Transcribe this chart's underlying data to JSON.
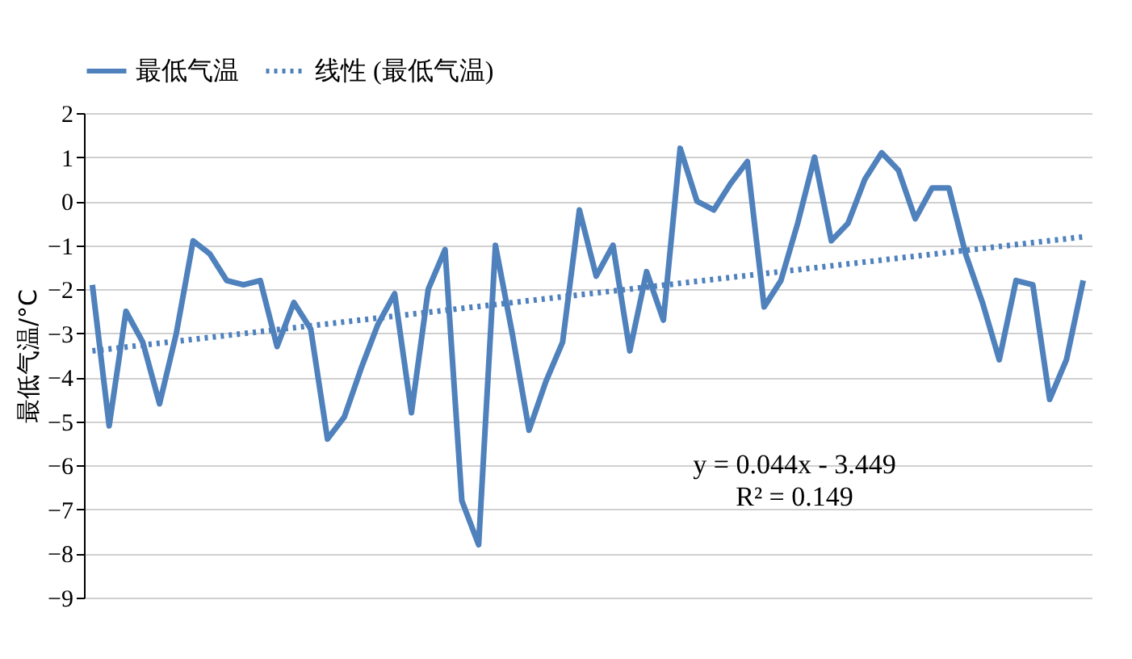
{
  "chart_data": {
    "type": "line",
    "ylabel": "最低气温/°C",
    "categories": [
      null,
      null,
      null,
      null,
      null,
      null,
      null,
      null,
      null,
      null,
      null,
      null,
      null,
      null,
      null,
      null,
      null,
      null,
      null,
      null,
      null,
      null,
      null,
      null,
      null,
      null,
      null,
      null,
      null,
      null,
      null,
      null,
      null,
      null,
      null,
      null,
      null,
      null,
      null,
      null,
      null,
      null,
      null,
      null,
      null,
      null,
      null,
      null,
      null,
      null,
      null,
      null,
      null,
      null,
      null,
      null,
      null,
      null,
      null,
      null
    ],
    "series": [
      {
        "name": "最低气温",
        "color": "#4f81bd",
        "line_style": "solid",
        "values": [
          -1.9,
          -5.1,
          -2.5,
          -3.2,
          -4.6,
          -3.0,
          -0.9,
          -1.2,
          -1.8,
          -1.9,
          -1.8,
          -3.3,
          -2.3,
          -2.9,
          -5.4,
          -4.9,
          -3.8,
          -2.8,
          -2.1,
          -4.8,
          -2.0,
          -1.1,
          -6.8,
          -7.8,
          -1.0,
          -3.0,
          -5.2,
          -4.1,
          -3.2,
          -0.2,
          -1.7,
          -1.0,
          -3.4,
          -1.6,
          -2.7,
          1.2,
          0.0,
          -0.2,
          0.4,
          0.9,
          -2.4,
          -1.8,
          -0.5,
          1.0,
          -0.9,
          -0.5,
          0.5,
          1.1,
          0.7,
          -0.4,
          0.3,
          0.3,
          -1.2,
          -2.3,
          -3.6,
          -1.8,
          -1.9,
          -4.5,
          -3.6,
          -1.8
        ]
      },
      {
        "name": "线性 (最低气温)",
        "color": "#4f81bd",
        "line_style": "dotted",
        "values": [
          -3.4,
          null,
          null,
          null,
          null,
          null,
          null,
          null,
          null,
          null,
          null,
          null,
          null,
          null,
          null,
          null,
          null,
          null,
          null,
          null,
          null,
          null,
          null,
          null,
          null,
          null,
          null,
          null,
          null,
          null,
          null,
          null,
          null,
          null,
          null,
          null,
          null,
          null,
          null,
          null,
          null,
          null,
          null,
          null,
          null,
          null,
          null,
          null,
          null,
          null,
          null,
          null,
          null,
          null,
          null,
          null,
          null,
          null,
          null,
          -0.81
        ]
      }
    ],
    "ylim": [
      -9,
      2
    ],
    "yticks": [
      -9,
      -8,
      -7,
      -6,
      -5,
      -4,
      -3,
      -2,
      -1,
      0,
      1,
      2
    ],
    "grid": "y",
    "legend": "top",
    "tick_labels": "y",
    "annotations": [
      "y = 0.044x - 3.449",
      "R² = 0.149"
    ]
  }
}
